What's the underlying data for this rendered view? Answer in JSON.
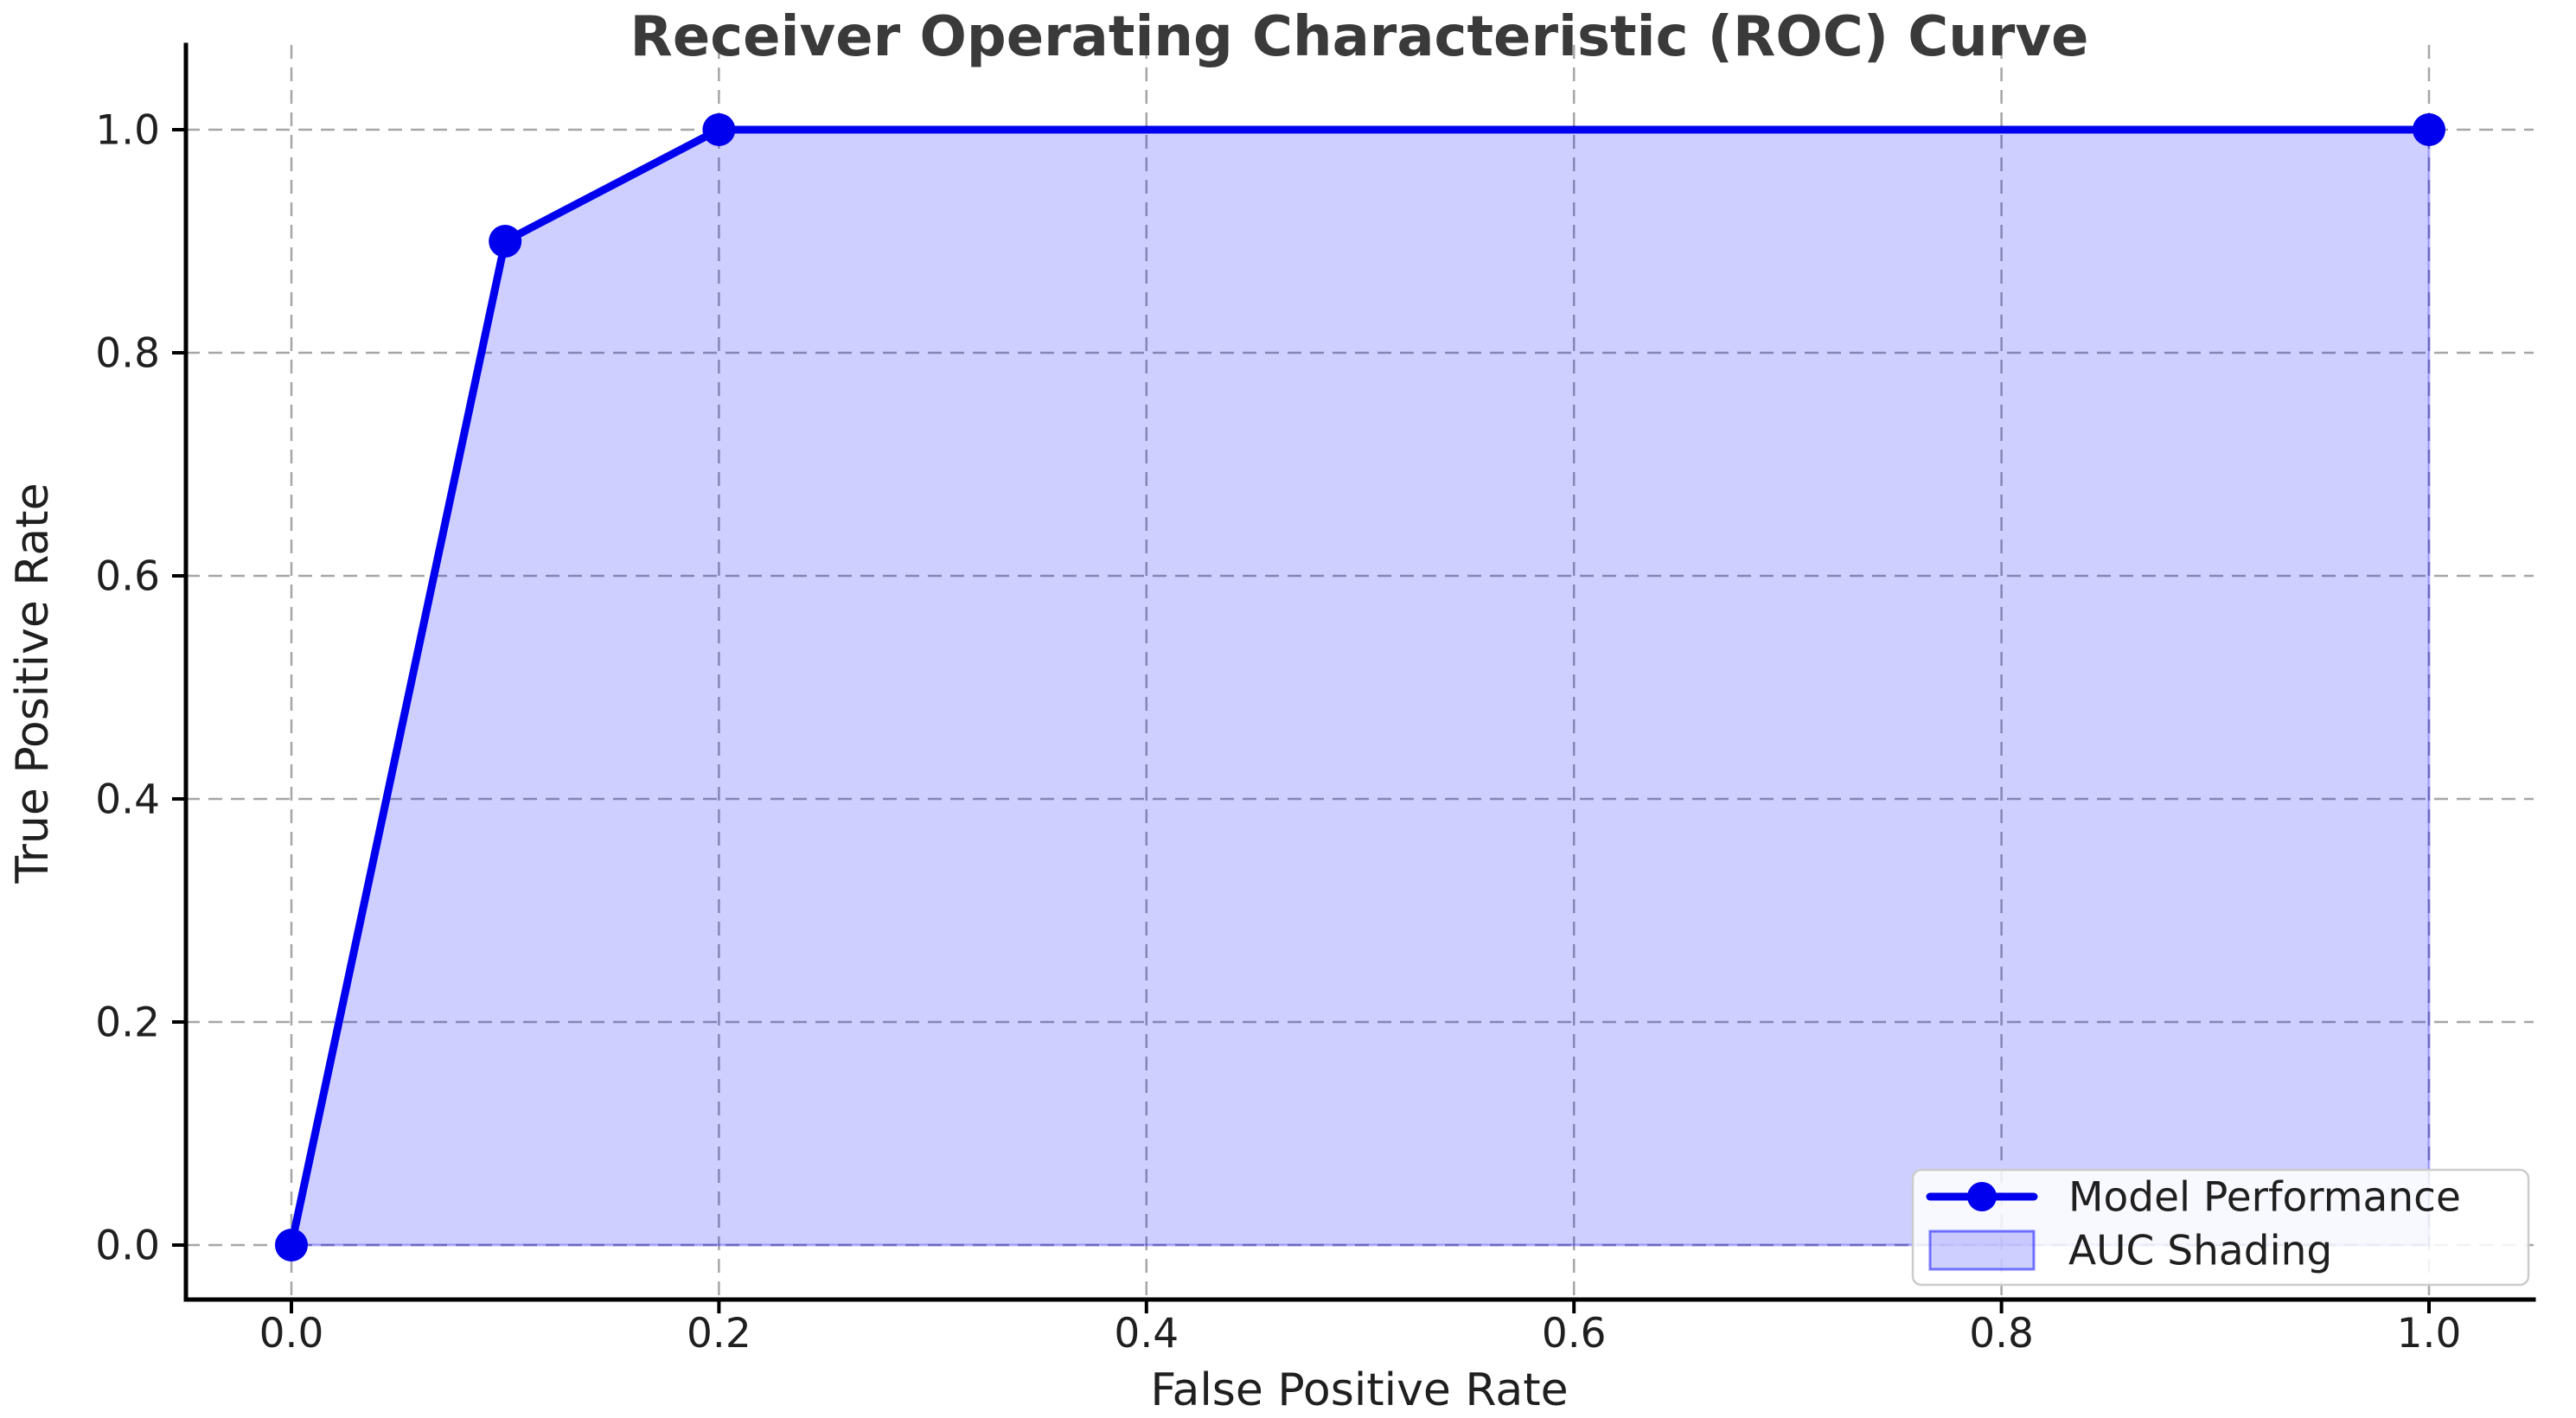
{
  "chart_data": {
    "type": "line",
    "title": "Receiver Operating Characteristic (ROC) Curve",
    "xlabel": "False Positive Rate",
    "ylabel": "True Positive Rate",
    "xlim": [
      -0.05,
      1.05
    ],
    "ylim": [
      -0.05,
      1.08
    ],
    "grid": true,
    "grid_style": "dashed",
    "series": [
      {
        "name": "Model Performance",
        "x": [
          0.0,
          0.1,
          0.2,
          1.0
        ],
        "y": [
          0.0,
          0.9,
          1.0,
          1.0
        ],
        "marker": "circle"
      }
    ],
    "area_fill": {
      "label": "AUC Shading",
      "under_series": "Model Performance",
      "baseline_y": 0.0
    },
    "x_ticks": [
      {
        "value": 0.0,
        "label": "0.0"
      },
      {
        "value": 0.2,
        "label": "0.2"
      },
      {
        "value": 0.4,
        "label": "0.4"
      },
      {
        "value": 0.6,
        "label": "0.6"
      },
      {
        "value": 0.8,
        "label": "0.8"
      },
      {
        "value": 1.0,
        "label": "1.0"
      }
    ],
    "y_ticks": [
      {
        "value": 0.0,
        "label": "0.0"
      },
      {
        "value": 0.2,
        "label": "0.2"
      },
      {
        "value": 0.4,
        "label": "0.4"
      },
      {
        "value": 0.6,
        "label": "0.6"
      },
      {
        "value": 0.8,
        "label": "0.8"
      },
      {
        "value": 1.0,
        "label": "1.0"
      }
    ],
    "legend": {
      "position": "lower right",
      "items": [
        {
          "label": "Model Performance",
          "swatch": "line-with-dot"
        },
        {
          "label": "AUC Shading",
          "swatch": "filled-patch"
        }
      ]
    },
    "colors": {
      "line": "#0000ee",
      "fill": "rgba(0,0,255,0.19)",
      "grid": "#a6a6a6",
      "spine": "#000000",
      "text": "#1f1f1f",
      "title": "#3a3a3a",
      "legend_bg": "rgba(255,255,255,0.85)",
      "legend_border": "#cccccc"
    }
  }
}
